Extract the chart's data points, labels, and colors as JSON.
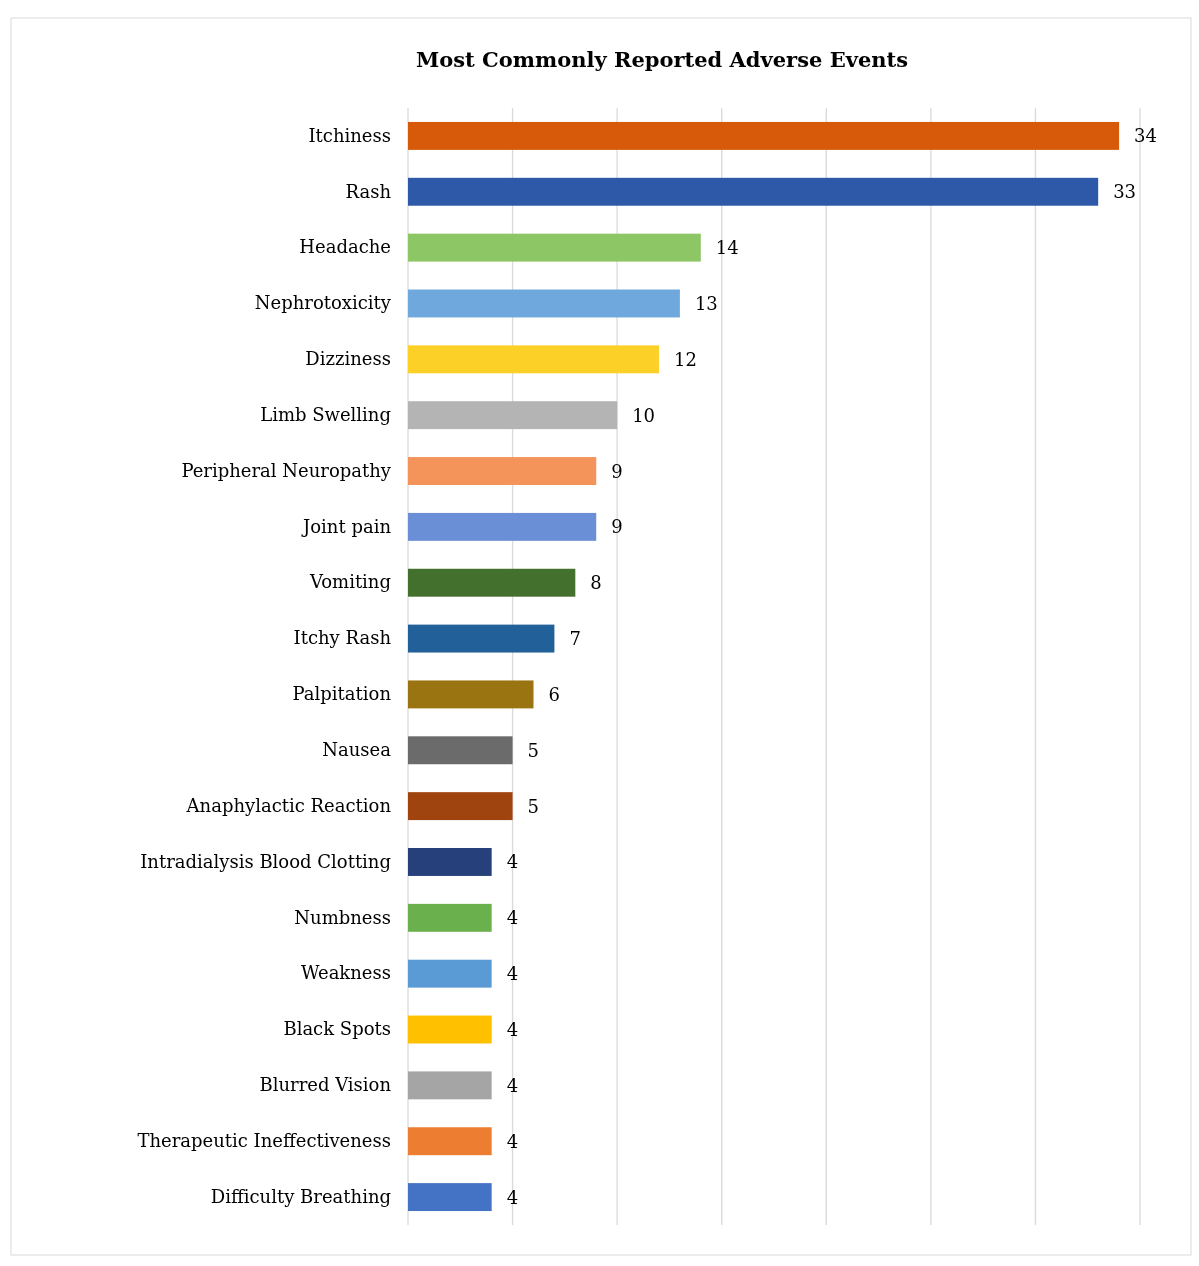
{
  "chart_data": {
    "type": "bar",
    "title": "Most Commonly Reported Adverse Events",
    "orientation": "horizontal",
    "categories": [
      "Itchiness",
      "Rash",
      "Headache",
      "Nephrotoxicity",
      "Dizziness",
      "Limb Swelling",
      "Peripheral Neuropathy",
      "Joint pain",
      "Vomiting",
      "Itchy Rash",
      "Palpitation",
      "Nausea",
      "Anaphylactic Reaction",
      "Intradialysis Blood Clotting",
      "Numbness",
      "Weakness",
      "Black Spots",
      "Blurred Vision",
      "Therapeutic Ineffectiveness",
      "Difficulty Breathing"
    ],
    "values": [
      34,
      33,
      14,
      13,
      12,
      10,
      9,
      9,
      8,
      7,
      6,
      5,
      5,
      4,
      4,
      4,
      4,
      4,
      4,
      4
    ],
    "colors": [
      "#d65a0a",
      "#2e59a8",
      "#8cc665",
      "#6fa8dc",
      "#fdd027",
      "#b4b4b4",
      "#f4945a",
      "#6a8fd6",
      "#44702e",
      "#22609a",
      "#9a7410",
      "#6b6b6b",
      "#a0440f",
      "#25407a",
      "#6ab04c",
      "#5b9bd5",
      "#ffc000",
      "#a5a5a5",
      "#ed7d31",
      "#4472c4"
    ],
    "xlim": [
      0,
      35
    ],
    "xticks": [
      {
        "value": 0,
        "label": null
      },
      {
        "value": 5,
        "label": null
      },
      {
        "value": 10,
        "label": null
      },
      {
        "value": 15,
        "label": null
      },
      {
        "value": 20,
        "label": null
      },
      {
        "value": 25,
        "label": null
      },
      {
        "value": 30,
        "label": null
      },
      {
        "value": 35,
        "label": null
      }
    ],
    "tick_labels": "y",
    "grid": "x",
    "data_labels": true
  }
}
